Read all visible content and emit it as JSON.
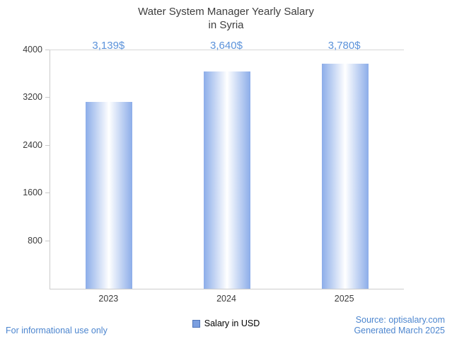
{
  "title": {
    "line1": "Water System Manager Yearly Salary",
    "line2": "in Syria"
  },
  "chart_data": {
    "type": "bar",
    "title": "Water System Manager Yearly Salary in Syria",
    "categories": [
      "2023",
      "2024",
      "2025"
    ],
    "values": [
      3139,
      3640,
      3780
    ],
    "value_labels": [
      "3,139$",
      "3,640$",
      "3,780$"
    ],
    "series": [
      {
        "name": "Salary in USD",
        "values": [
          3139,
          3640,
          3780
        ]
      }
    ],
    "xlabel": "",
    "ylabel": "",
    "ylim": [
      0,
      4000
    ],
    "y_ticks": [
      800,
      1600,
      2400,
      3200,
      4000
    ],
    "grid": "off",
    "legend_position": "bottom-center",
    "bar_edge_color": "#8cade9",
    "bar_center_color": "#ffffff"
  },
  "legend": {
    "label": "Salary in USD",
    "swatch_color": "#7b9fe0",
    "swatch_border": "#4f74b8"
  },
  "footer": {
    "left": "For informational use only",
    "source": "Source: optisalary.com",
    "generated": "Generated March 2025"
  },
  "colors": {
    "accent_blue": "#4d86cf",
    "value_label_blue": "#5b92da",
    "axis": "#cccccc",
    "text": "#3c3c3c"
  }
}
